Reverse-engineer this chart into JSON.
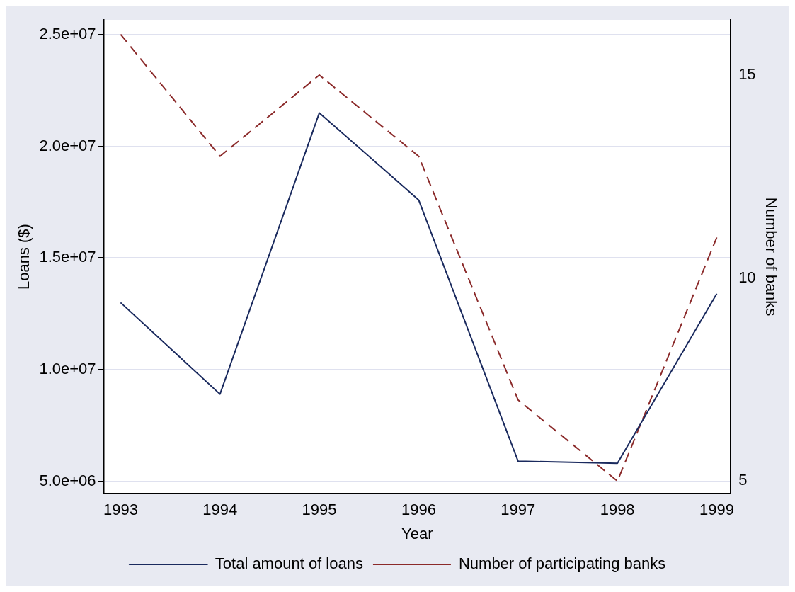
{
  "chart_data": {
    "type": "line",
    "xlabel": "Year",
    "ylabel": "Loans ($)",
    "y2label": "Number of banks",
    "x": [
      1993,
      1994,
      1995,
      1996,
      1997,
      1998,
      1999
    ],
    "xlim": [
      1992.83,
      1999.14
    ],
    "xticks": [
      1993,
      1994,
      1995,
      1996,
      1997,
      1998,
      1999
    ],
    "ylim": [
      4440000,
      25670000
    ],
    "yticks": [
      {
        "value": 5000000,
        "label": "5.0e+06"
      },
      {
        "value": 10000000,
        "label": "1.0e+07"
      },
      {
        "value": 15000000,
        "label": "1.5e+07"
      },
      {
        "value": 20000000,
        "label": "2.0e+07"
      },
      {
        "value": 25000000,
        "label": "2.5e+07"
      }
    ],
    "y2lim": [
      4.69,
      16.36
    ],
    "y2ticks": [
      5,
      10,
      15
    ],
    "series": [
      {
        "name": "Total amount of loans",
        "color": "#1a2a5e",
        "line_style": "solid",
        "values": [
          13000000,
          8900000,
          21500000,
          17600000,
          5900000,
          5800000,
          13400000
        ]
      },
      {
        "name": "Number of participating banks",
        "color": "#8b2a2a",
        "line_style": "dashed",
        "axis": "y2",
        "values": [
          16,
          13,
          15,
          13,
          7,
          5,
          11
        ]
      }
    ],
    "grid": "y",
    "legend": "bottom",
    "marker": "none"
  }
}
